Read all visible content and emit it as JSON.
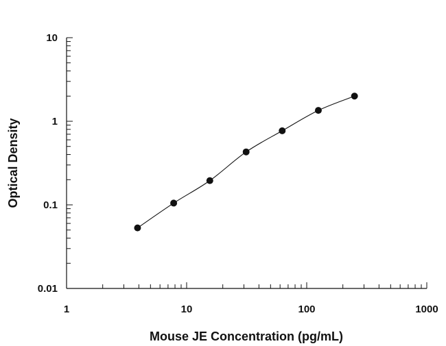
{
  "chart_data": {
    "type": "scatter",
    "title": "",
    "xlabel": "Mouse JE Concentration (pg/mL)",
    "ylabel": "Optical Density",
    "x_scale": "log",
    "y_scale": "log",
    "xlim": [
      1,
      1000
    ],
    "ylim": [
      0.01,
      10
    ],
    "x_ticks": [
      1,
      10,
      100,
      1000
    ],
    "x_tick_labels": [
      "1",
      "10",
      "100",
      "1000"
    ],
    "y_ticks": [
      0.01,
      0.1,
      1,
      10
    ],
    "y_tick_labels": [
      "0.01",
      "0.1",
      "1",
      "10"
    ],
    "grid": false,
    "legend": "none",
    "fit_line": true,
    "series": [
      {
        "x": [
          3.9,
          7.8,
          15.6,
          31.3,
          62.5,
          125,
          250
        ],
        "y": [
          0.053,
          0.105,
          0.195,
          0.43,
          0.77,
          1.35,
          2.0
        ]
      }
    ]
  },
  "colors": {
    "axis": "#111111",
    "marker": "#111111",
    "curve": "#111111"
  }
}
